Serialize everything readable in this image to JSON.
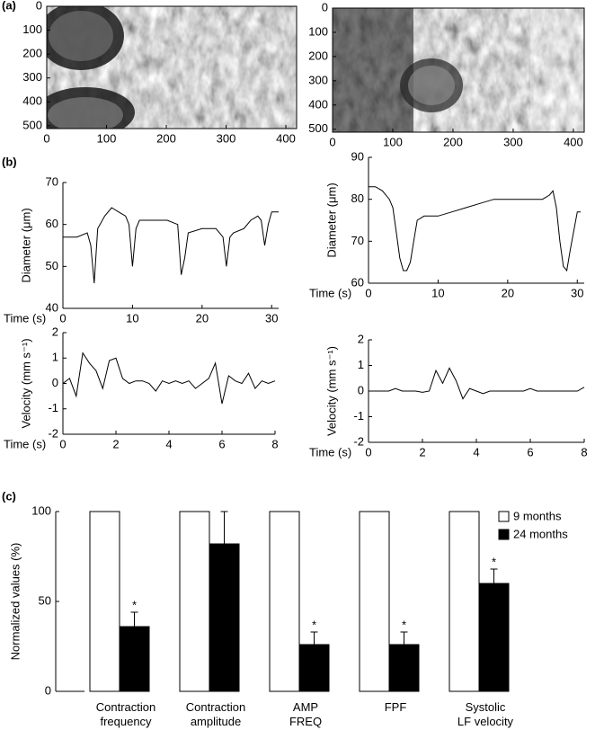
{
  "chart_data": [
    {
      "type": "image",
      "label": "(a)",
      "xlim": [
        0,
        418
      ],
      "ylim": [
        0,
        512
      ],
      "yreverse": true,
      "xticks": [
        0,
        100,
        200,
        300,
        400
      ],
      "yticks": [
        0,
        100,
        200,
        300,
        400,
        500
      ]
    },
    {
      "type": "image",
      "xlim": [
        0,
        418
      ],
      "ylim": [
        0,
        512
      ],
      "yreverse": true,
      "xticks": [
        0,
        100,
        200,
        300,
        400
      ],
      "yticks": [
        0,
        100,
        200,
        300,
        400,
        500
      ]
    },
    {
      "type": "line",
      "label": "(b)",
      "xlabel": "Time (s)",
      "ylabel": "Diameter (μm)",
      "color": "#000000",
      "xlim": [
        0,
        31
      ],
      "ylim": [
        40,
        70
      ],
      "xticks": [
        0,
        10,
        20,
        30
      ],
      "yticks": [
        40,
        50,
        60,
        70
      ],
      "x": [
        0,
        2,
        3.5,
        4,
        4.5,
        5,
        6,
        7,
        8,
        9,
        9.5,
        10,
        10.5,
        11,
        13,
        15,
        16.5,
        17,
        17.5,
        18,
        20,
        22,
        23,
        23.5,
        24,
        24.5,
        26,
        27,
        28,
        28.5,
        29,
        29.5,
        30,
        31
      ],
      "values": [
        57,
        57,
        58,
        55,
        46,
        59,
        62,
        64,
        63,
        62,
        60,
        50,
        59,
        61,
        61,
        61,
        60,
        48,
        52,
        58,
        59,
        59,
        57,
        50,
        57,
        58,
        59,
        61,
        62,
        61,
        55,
        60,
        63,
        63
      ]
    },
    {
      "type": "line",
      "xlabel": "Time (s)",
      "ylabel": "Diameter (μm)",
      "color": "#000000",
      "xlim": [
        0,
        31
      ],
      "ylim": [
        60,
        90
      ],
      "xticks": [
        0,
        10,
        20,
        30
      ],
      "yticks": [
        60,
        70,
        80,
        90
      ],
      "x": [
        0,
        1,
        2,
        3,
        3.5,
        4,
        4.5,
        5,
        5.5,
        6,
        6.5,
        7,
        8,
        10,
        12,
        14,
        16,
        18,
        20,
        22,
        24,
        25,
        26,
        26.5,
        27,
        27.5,
        28,
        28.5,
        29,
        30,
        30.5
      ],
      "values": [
        83,
        83,
        82,
        80,
        78,
        72,
        66,
        63,
        63,
        65,
        70,
        75,
        76,
        76,
        77,
        78,
        79,
        80,
        80,
        80,
        80,
        80,
        81,
        82,
        78,
        70,
        64,
        63,
        68,
        77,
        77
      ]
    },
    {
      "type": "line",
      "xlabel": "Time (s)",
      "ylabel": "Velocity (mm s⁻¹)",
      "color": "#000000",
      "xlim": [
        0,
        8
      ],
      "ylim": [
        -2,
        2
      ],
      "xticks": [
        0,
        2,
        4,
        6,
        8
      ],
      "yticks": [
        -2,
        -1,
        0,
        1,
        2
      ],
      "x": [
        0,
        0.25,
        0.5,
        0.75,
        1,
        1.25,
        1.5,
        1.75,
        2,
        2.25,
        2.5,
        2.75,
        3,
        3.25,
        3.5,
        3.75,
        4,
        4.25,
        4.5,
        4.75,
        5,
        5.25,
        5.5,
        5.75,
        6,
        6.25,
        6.5,
        6.75,
        7,
        7.25,
        7.5,
        7.75,
        8
      ],
      "values": [
        0,
        0.2,
        -0.5,
        1.2,
        0.8,
        0.5,
        -0.2,
        0.9,
        1.0,
        0.2,
        0,
        0.1,
        0.1,
        0,
        -0.3,
        0.1,
        0,
        0.1,
        0,
        0.1,
        -0.2,
        0,
        0.2,
        0.8,
        -0.8,
        0.3,
        0.1,
        0,
        0.4,
        -0.2,
        0.1,
        0,
        0.1
      ]
    },
    {
      "type": "line",
      "xlabel": "Time (s)",
      "ylabel": "Velocity (mm s⁻¹)",
      "color": "#000000",
      "xlim": [
        0,
        8
      ],
      "ylim": [
        -2,
        2
      ],
      "xticks": [
        0,
        2,
        4,
        6,
        8
      ],
      "yticks": [
        -2,
        -1,
        0,
        1,
        2
      ],
      "x": [
        0,
        0.25,
        0.5,
        0.75,
        1,
        1.25,
        1.5,
        1.75,
        2,
        2.25,
        2.5,
        2.75,
        3,
        3.25,
        3.5,
        3.75,
        4,
        4.25,
        4.5,
        4.75,
        5,
        5.25,
        5.5,
        5.75,
        6,
        6.25,
        6.5,
        6.75,
        7,
        7.25,
        7.5,
        7.75,
        8
      ],
      "values": [
        0,
        0,
        0,
        0,
        0.1,
        0,
        0,
        0,
        -0.05,
        0,
        0.8,
        0.3,
        0.9,
        0.4,
        -0.3,
        0.1,
        0,
        -0.1,
        0,
        0,
        0,
        0,
        0,
        0,
        0.1,
        0,
        0,
        0,
        0,
        0,
        0,
        0,
        0.15
      ]
    },
    {
      "type": "bar",
      "label": "(c)",
      "ylabel": "Normalized values (%)",
      "ylim": [
        0,
        100
      ],
      "yticks": [
        0,
        50,
        100
      ],
      "legend": "upper right",
      "categories": [
        "Contraction\nfrequency",
        "Contraction\namplitude",
        "AMP\nFREQ",
        "FPF",
        "Systolic\nLF velocity"
      ],
      "series": [
        {
          "name": "9 months",
          "color": "#ffffff",
          "values": [
            100,
            100,
            100,
            100,
            100
          ]
        },
        {
          "name": "24 months",
          "color": "#000000",
          "values": [
            36,
            82,
            26,
            26,
            60
          ],
          "errors": [
            8,
            18,
            7,
            7,
            8
          ]
        }
      ],
      "significance": [
        "*",
        null,
        "*",
        "*",
        "*"
      ]
    }
  ]
}
